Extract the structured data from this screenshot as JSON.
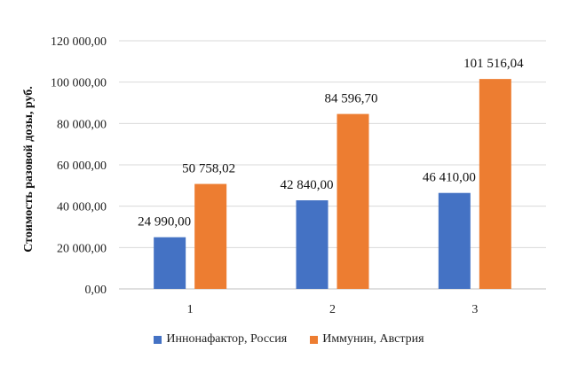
{
  "chart_data": {
    "type": "bar",
    "categories": [
      "1",
      "2",
      "3"
    ],
    "series": [
      {
        "name": "Иннонафактор, Россия",
        "color": "#4472C4",
        "values": [
          24990.0,
          42840.0,
          46410.0
        ],
        "labels": [
          "24 990,00",
          "42 840,00",
          "46 410,00"
        ]
      },
      {
        "name": "Иммунин, Австрия",
        "color": "#ED7D31",
        "values": [
          50758.02,
          84596.7,
          101516.04
        ],
        "labels": [
          "50 758,02",
          "84 596,70",
          "101 516,04"
        ]
      }
    ],
    "ylabel": "Стоимость разовой дозы, руб.",
    "ylim": [
      0,
      120000
    ],
    "yticks": [
      0,
      20000,
      40000,
      60000,
      80000,
      100000,
      120000
    ],
    "ytick_labels": [
      "0,00",
      "20 000,00",
      "40 000,00",
      "60 000,00",
      "80 000,00",
      "100 000,00",
      "120 000,00"
    ],
    "grid": true,
    "legend_position": "bottom"
  }
}
